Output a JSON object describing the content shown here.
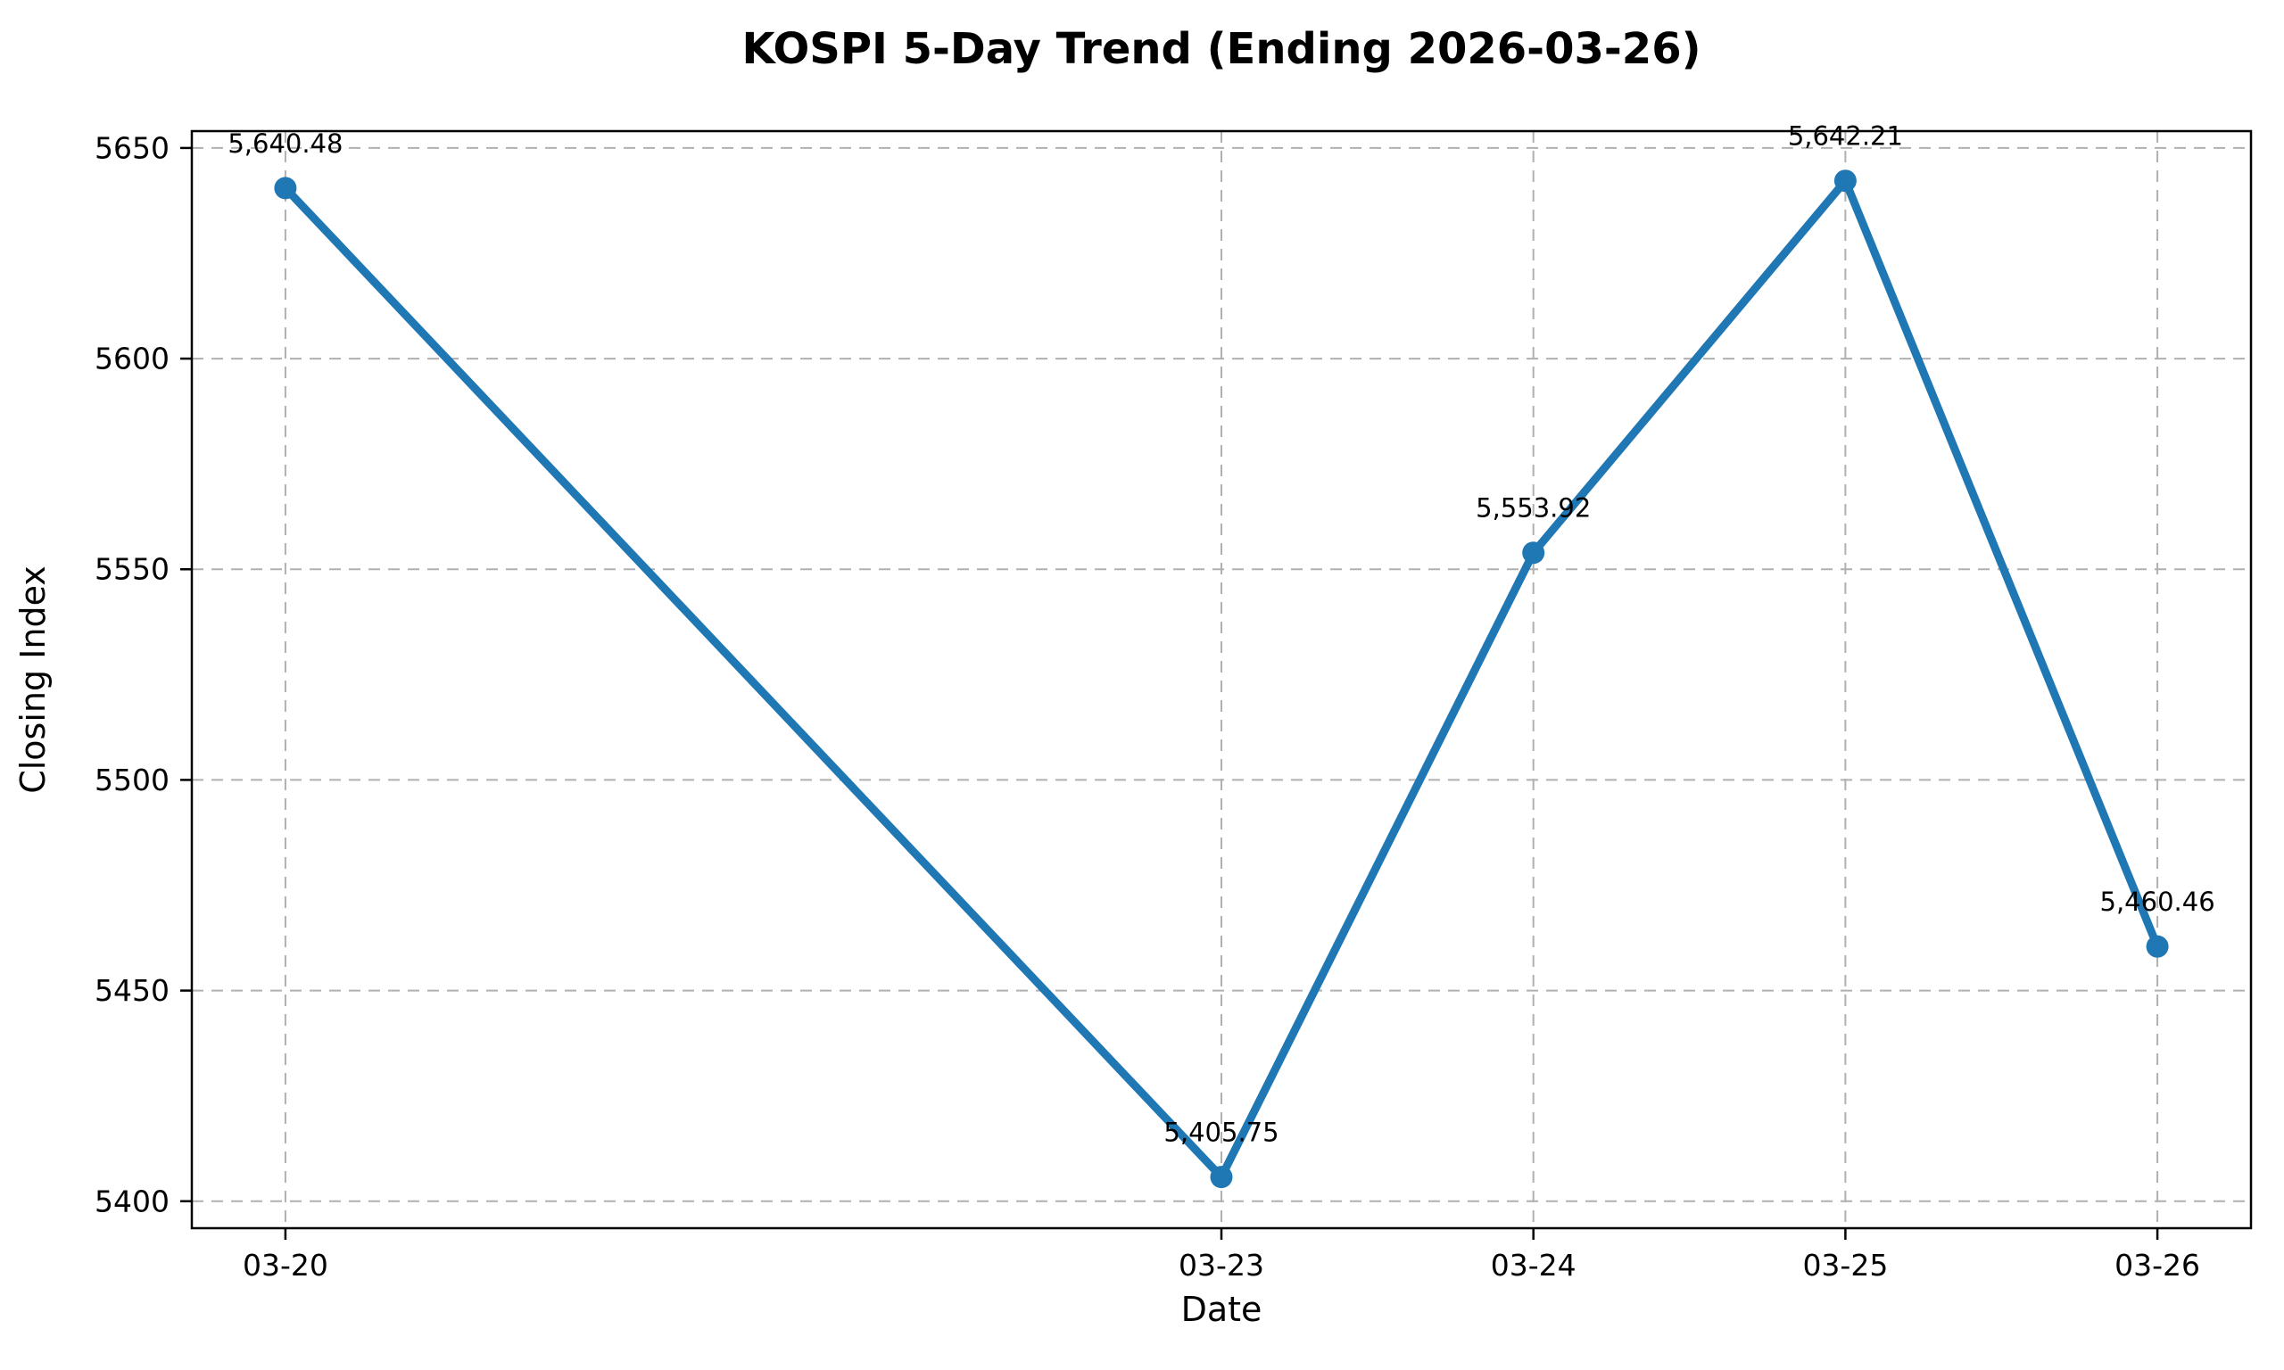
{
  "chart_data": {
    "type": "line",
    "title": "KOSPI 5-Day Trend (Ending 2026-03-26)",
    "xlabel": "Date",
    "ylabel": "Closing Index",
    "categories": [
      "03-20",
      "03-23",
      "03-24",
      "03-25",
      "03-26"
    ],
    "x_day_offsets": [
      0,
      3,
      4,
      5,
      6
    ],
    "values": [
      5640.48,
      5405.75,
      5553.92,
      5642.21,
      5460.46
    ],
    "point_labels": [
      "5,640.48",
      "5,405.75",
      "5,553.92",
      "5,642.21",
      "5,460.46"
    ],
    "yticks": [
      5400,
      5450,
      5500,
      5550,
      5600,
      5650
    ],
    "ylim": [
      5393.6,
      5654.0
    ],
    "xlim_days": [
      -0.3,
      6.3
    ],
    "grid": true,
    "grid_style": "dashed",
    "legend": "none",
    "marker": "circle",
    "line_color": "#1f77b4",
    "marker_color": "#1f77b4",
    "grid_color": "#b0b0b0",
    "spine_color": "#000000",
    "background_color": "#ffffff",
    "text_color": "#000000"
  }
}
